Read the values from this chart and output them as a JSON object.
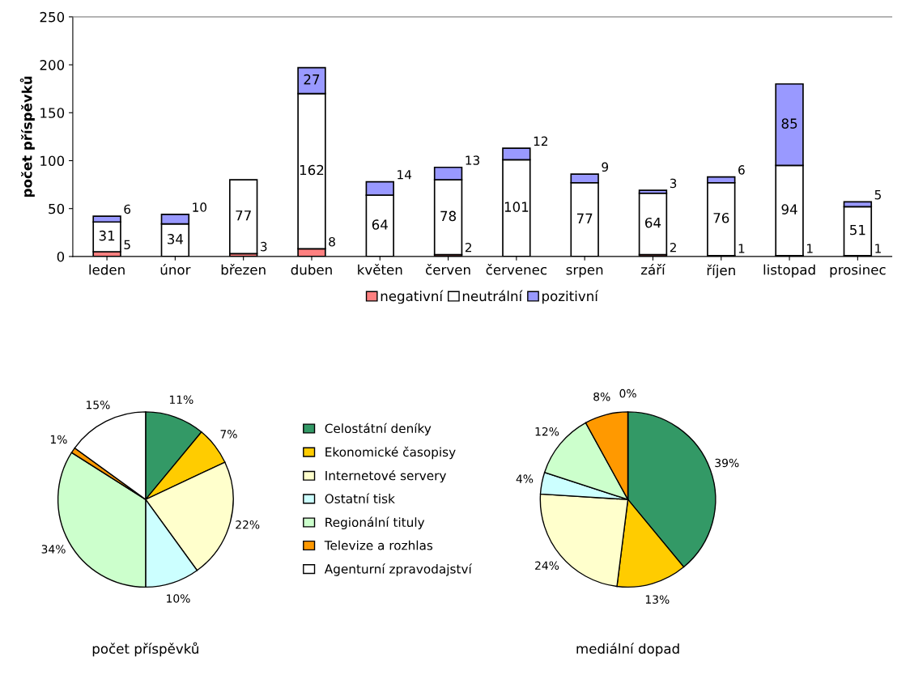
{
  "chart_data": [
    {
      "type": "bar",
      "stacked": true,
      "ylabel": "počet příspěvků",
      "categories": [
        "leden",
        "únor",
        "březen",
        "duben",
        "květen",
        "červen",
        "červenec",
        "srpen",
        "září",
        "říjen",
        "listopad",
        "prosinec"
      ],
      "series": [
        {
          "name": "negativní",
          "color": "#ff8080",
          "values": [
            5,
            null,
            3,
            8,
            null,
            2,
            null,
            null,
            2,
            1,
            1,
            1
          ]
        },
        {
          "name": "neutrální",
          "color": "#ffffff",
          "values": [
            31,
            34,
            77,
            162,
            64,
            78,
            101,
            77,
            64,
            76,
            94,
            51
          ]
        },
        {
          "name": "pozitivní",
          "color": "#9999ff",
          "values": [
            6,
            10,
            null,
            27,
            14,
            13,
            12,
            9,
            3,
            6,
            85,
            5
          ]
        }
      ],
      "ylim": [
        0,
        250
      ],
      "yticks": [
        0,
        50,
        100,
        150,
        200,
        250
      ],
      "data_labels": true,
      "legend": "bottom",
      "grid": false
    },
    {
      "type": "pie",
      "title": "počet příspěvků",
      "categories": [
        "Celostátní deníky",
        "Ekonomické časopisy",
        "Internetové servery",
        "Ostatní tisk",
        "Regionální tituly",
        "Televize a rozhlas",
        "Agenturní zpravodajství"
      ],
      "values": [
        11,
        7,
        22,
        10,
        34,
        1,
        15
      ],
      "value_labels": [
        "11%",
        "7%",
        "22%",
        "10%",
        "34%",
        "1%",
        "15%"
      ],
      "colors": [
        "#339966",
        "#ffcc00",
        "#ffffcc",
        "#ccffff",
        "#ccffcc",
        "#ff9900",
        "#ffffff"
      ],
      "legend": "right"
    },
    {
      "type": "pie",
      "title": "mediální dopad",
      "categories": [
        null,
        null,
        null,
        null,
        null,
        null,
        null
      ],
      "values": [
        39,
        13,
        24,
        4,
        12,
        8,
        0
      ],
      "value_labels": [
        "39%",
        "13%",
        "24%",
        "4%",
        "12%",
        "8%",
        "0%"
      ],
      "colors": [
        "#339966",
        "#ffcc00",
        "#ffffcc",
        "#ccffff",
        "#ccffcc",
        "#ff9900",
        "#ffffff"
      ],
      "legend": false
    }
  ]
}
